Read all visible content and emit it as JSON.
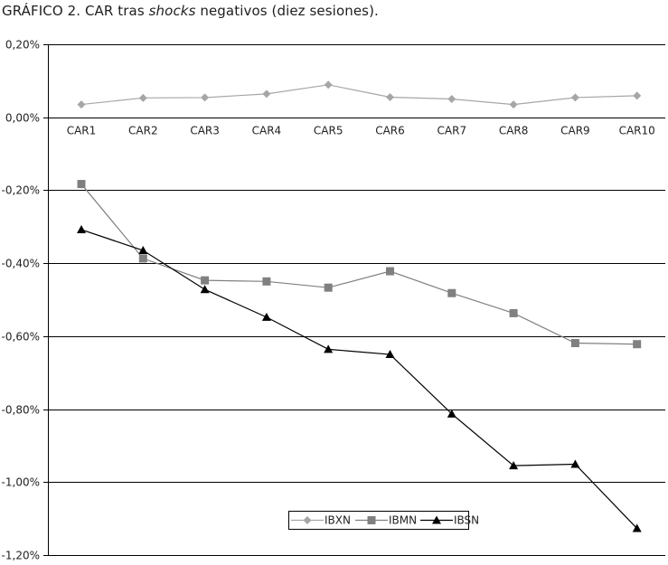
{
  "title": {
    "prefix": "GRÁFICO 2. CAR tras ",
    "emphasis": "shocks",
    "suffix": " negativos (diez sesiones)."
  },
  "chart_data": {
    "type": "line",
    "categories": [
      "CAR1",
      "CAR2",
      "CAR3",
      "CAR4",
      "CAR5",
      "CAR6",
      "CAR7",
      "CAR8",
      "CAR9",
      "CAR10"
    ],
    "series": [
      {
        "name": "IBXN",
        "color": "#a6a6a6",
        "marker": "diamond",
        "values": [
          0.035,
          0.053,
          0.054,
          0.064,
          0.089,
          0.055,
          0.05,
          0.035,
          0.054,
          0.059
        ]
      },
      {
        "name": "IBMN",
        "color": "#808080",
        "marker": "square",
        "values": [
          -0.183,
          -0.387,
          -0.447,
          -0.45,
          -0.467,
          -0.422,
          -0.482,
          -0.537,
          -0.619,
          -0.622
        ]
      },
      {
        "name": "IBSN",
        "color": "#000000",
        "marker": "triangle",
        "values": [
          -0.308,
          -0.365,
          -0.472,
          -0.548,
          -0.636,
          -0.65,
          -0.813,
          -0.955,
          -0.951,
          -1.127
        ]
      }
    ],
    "yticks": [
      "0,20%",
      "0,00%",
      "-0,20%",
      "-0,40%",
      "-0,60%",
      "-0,80%",
      "-1,00%",
      "-1,20%"
    ],
    "ylim": [
      -1.2,
      0.2
    ],
    "grid": true,
    "legend_position": "bottom-center"
  }
}
